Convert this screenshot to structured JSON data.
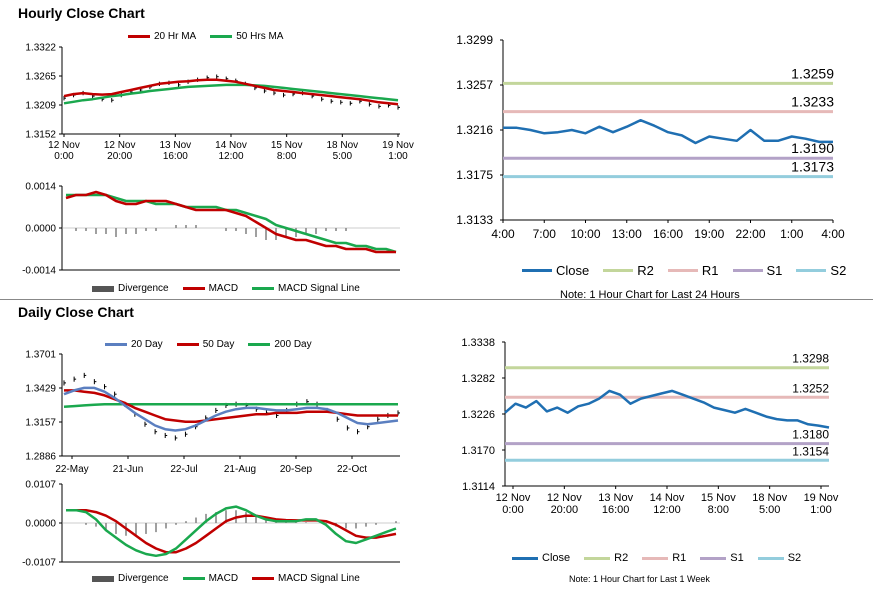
{
  "sections": {
    "hourly_title": "Hourly Close Chart",
    "daily_title": "Daily Close Chart"
  },
  "colors": {
    "close": "#1f6fb2",
    "ma_short": "#c00000",
    "ma_long": "#1aa84e",
    "ma_200": "#1aa84e",
    "ma_20day": "#5b7fc0",
    "r2": "#c3d69b",
    "r1": "#e6b9b8",
    "s1": "#b3a2c7",
    "s2": "#93cddd",
    "divergence": "#808080",
    "bar": "#000000"
  },
  "chart_data": [
    {
      "id": "hourly_price",
      "type": "line",
      "title": "",
      "legend": [
        "20 Hr MA",
        "50 Hrs MA"
      ],
      "y_ticks": [
        "1.3322",
        "1.3265",
        "1.3209",
        "1.3152"
      ],
      "ylim": [
        1.3152,
        1.3322
      ],
      "x_ticks": [
        [
          "12 Nov",
          "0:00"
        ],
        [
          "12 Nov",
          "20:00"
        ],
        [
          "13 Nov",
          "16:00"
        ],
        [
          "14 Nov",
          "12:00"
        ],
        [
          "15 Nov",
          "8:00"
        ],
        [
          "18 Nov",
          "5:00"
        ],
        [
          "19 Nov",
          "1:00"
        ]
      ],
      "series": [
        {
          "name": "Price",
          "style": "hlc_bars",
          "values": [
            1.3222,
            1.3228,
            1.3232,
            1.3226,
            1.322,
            1.3218,
            1.3228,
            1.3234,
            1.3238,
            1.3244,
            1.325,
            1.3252,
            1.3248,
            1.3254,
            1.3258,
            1.3262,
            1.3264,
            1.326,
            1.3256,
            1.325,
            1.3242,
            1.3236,
            1.3232,
            1.3228,
            1.323,
            1.3232,
            1.3226,
            1.322,
            1.3216,
            1.3214,
            1.3212,
            1.3216,
            1.321,
            1.3206,
            1.3208,
            1.3204
          ]
        },
        {
          "name": "20 Hr MA",
          "values": [
            1.3226,
            1.323,
            1.3232,
            1.323,
            1.3229,
            1.323,
            1.3234,
            1.3238,
            1.3242,
            1.3246,
            1.325,
            1.3252,
            1.3254,
            1.3255,
            1.3257,
            1.3258,
            1.3258,
            1.3256,
            1.3254,
            1.325,
            1.3246,
            1.3242,
            1.3238,
            1.3236,
            1.3234,
            1.3232,
            1.323,
            1.3228,
            1.3226,
            1.3224,
            1.3222,
            1.322,
            1.3217,
            1.3214,
            1.3212,
            1.321
          ]
        },
        {
          "name": "50 Hrs MA",
          "values": [
            1.3212,
            1.3215,
            1.3218,
            1.322,
            1.3223,
            1.3226,
            1.3228,
            1.3231,
            1.3233,
            1.3236,
            1.3238,
            1.324,
            1.3242,
            1.3244,
            1.3245,
            1.3246,
            1.3247,
            1.3248,
            1.3248,
            1.3248,
            1.3247,
            1.3246,
            1.3244,
            1.3242,
            1.324,
            1.3238,
            1.3236,
            1.3234,
            1.3232,
            1.323,
            1.3228,
            1.3226,
            1.3224,
            1.3222,
            1.322,
            1.3218
          ]
        }
      ]
    },
    {
      "id": "hourly_macd",
      "type": "line",
      "legend": [
        "Divergence",
        "MACD",
        "MACD Signal Line"
      ],
      "y_ticks": [
        "0.0014",
        "0.0000",
        "-0.0014"
      ],
      "ylim": [
        -0.0014,
        0.0014
      ],
      "series": [
        {
          "name": "Divergence",
          "style": "bars",
          "values": [
            0.0,
            -0.0001,
            -0.0001,
            -0.0002,
            -0.0002,
            -0.0003,
            -0.0002,
            -0.0002,
            -0.0001,
            -0.0001,
            0.0,
            0.0001,
            0.0001,
            0.0001,
            0.0,
            0.0,
            -0.0001,
            -0.0001,
            -0.0002,
            -0.0003,
            -0.0004,
            -0.0004,
            -0.0003,
            -0.0003,
            -0.0002,
            -0.0002,
            -0.0001,
            -0.0001,
            -0.0001,
            0.0,
            0.0,
            0.0,
            0.0,
            0.0
          ]
        },
        {
          "name": "MACD",
          "values": [
            0.001,
            0.0011,
            0.0011,
            0.0012,
            0.0011,
            0.0009,
            0.0008,
            0.0008,
            0.0009,
            0.0009,
            0.0009,
            0.0008,
            0.0007,
            0.0006,
            0.0006,
            0.0006,
            0.0006,
            0.0005,
            0.0004,
            0.0002,
            0.0,
            -0.0002,
            -0.0003,
            -0.0004,
            -0.0004,
            -0.0005,
            -0.0006,
            -0.0006,
            -0.0007,
            -0.0007,
            -0.0007,
            -0.0008,
            -0.0008,
            -0.0008
          ]
        },
        {
          "name": "MACD Signal Line",
          "values": [
            0.0011,
            0.0011,
            0.0011,
            0.0011,
            0.0011,
            0.001,
            0.0009,
            0.0009,
            0.0009,
            0.0008,
            0.0008,
            0.0008,
            0.0007,
            0.0007,
            0.0007,
            0.0007,
            0.0006,
            0.0006,
            0.0005,
            0.0004,
            0.0003,
            0.0001,
            0.0,
            -0.0001,
            -0.0002,
            -0.0003,
            -0.0004,
            -0.0005,
            -0.0005,
            -0.0006,
            -0.0006,
            -0.0007,
            -0.0007,
            -0.0008
          ]
        }
      ]
    },
    {
      "id": "hourly_levels",
      "type": "line",
      "legend": [
        "Close",
        "R2",
        "R1",
        "S1",
        "S2"
      ],
      "note": "Note: 1 Hour Chart for Last 24 Hours",
      "y_ticks": [
        "1.3299",
        "1.3257",
        "1.3216",
        "1.3175",
        "1.3133"
      ],
      "ylim": [
        1.3133,
        1.3299
      ],
      "x_ticks": [
        "4:00",
        "7:00",
        "10:00",
        "13:00",
        "16:00",
        "19:00",
        "22:00",
        "1:00",
        "4:00"
      ],
      "levels": [
        {
          "name": "R2",
          "value": 1.3259,
          "label": "1.3259"
        },
        {
          "name": "R1",
          "value": 1.3233,
          "label": "1.3233"
        },
        {
          "name": "S1",
          "value": 1.319,
          "label": "1.3190"
        },
        {
          "name": "S2",
          "value": 1.3173,
          "label": "1.3173"
        }
      ],
      "series": [
        {
          "name": "Close",
          "values": [
            1.3218,
            1.3218,
            1.3216,
            1.3213,
            1.3214,
            1.3216,
            1.3213,
            1.3219,
            1.3214,
            1.3219,
            1.3225,
            1.322,
            1.3214,
            1.3211,
            1.3204,
            1.321,
            1.3208,
            1.3206,
            1.3216,
            1.3206,
            1.3206,
            1.321,
            1.3208,
            1.3205,
            1.3205
          ]
        }
      ]
    },
    {
      "id": "daily_price",
      "type": "line",
      "legend": [
        "20 Day",
        "50 Day",
        "200 Day"
      ],
      "y_ticks": [
        "1.3701",
        "1.3429",
        "1.3157",
        "1.2886"
      ],
      "ylim": [
        1.2886,
        1.3701
      ],
      "x_ticks": [
        "22-May",
        "21-Jun",
        "22-Jul",
        "21-Aug",
        "20-Sep",
        "22-Oct"
      ],
      "series": [
        {
          "name": "Price",
          "style": "hlc_bars",
          "values": [
            1.347,
            1.35,
            1.353,
            1.348,
            1.344,
            1.338,
            1.33,
            1.322,
            1.314,
            1.308,
            1.305,
            1.303,
            1.306,
            1.312,
            1.319,
            1.325,
            1.329,
            1.33,
            1.329,
            1.326,
            1.323,
            1.321,
            1.325,
            1.33,
            1.332,
            1.33,
            1.325,
            1.318,
            1.311,
            1.308,
            1.312,
            1.318,
            1.321,
            1.323
          ]
        },
        {
          "name": "20 Day",
          "values": [
            1.338,
            1.341,
            1.343,
            1.343,
            1.34,
            1.335,
            1.329,
            1.323,
            1.318,
            1.313,
            1.31,
            1.309,
            1.31,
            1.313,
            1.317,
            1.321,
            1.324,
            1.326,
            1.327,
            1.327,
            1.326,
            1.325,
            1.325,
            1.326,
            1.327,
            1.327,
            1.326,
            1.323,
            1.319,
            1.315,
            1.314,
            1.315,
            1.316,
            1.317
          ]
        },
        {
          "name": "50 Day",
          "values": [
            1.341,
            1.341,
            1.34,
            1.339,
            1.337,
            1.334,
            1.331,
            1.327,
            1.324,
            1.321,
            1.318,
            1.317,
            1.316,
            1.316,
            1.317,
            1.318,
            1.319,
            1.32,
            1.321,
            1.322,
            1.322,
            1.323,
            1.323,
            1.323,
            1.324,
            1.324,
            1.324,
            1.323,
            1.322,
            1.321,
            1.321,
            1.321,
            1.321,
            1.321
          ]
        },
        {
          "name": "200 Day",
          "values": [
            1.328,
            1.3285,
            1.329,
            1.3295,
            1.33,
            1.33,
            1.33,
            1.33,
            1.33,
            1.33,
            1.33,
            1.33,
            1.33,
            1.33,
            1.33,
            1.33,
            1.33,
            1.33,
            1.33,
            1.33,
            1.33,
            1.33,
            1.33,
            1.33,
            1.33,
            1.33,
            1.33,
            1.33,
            1.33,
            1.33,
            1.33,
            1.33,
            1.33,
            1.33
          ]
        }
      ]
    },
    {
      "id": "daily_macd",
      "type": "line",
      "legend": [
        "Divergence",
        "MACD",
        "MACD Signal Line"
      ],
      "y_ticks": [
        "0.0107",
        "0.0000",
        "-0.0107"
      ],
      "ylim": [
        -0.0107,
        0.0107
      ],
      "series": [
        {
          "name": "Divergence",
          "style": "bars",
          "values": [
            0.0,
            0.0,
            -0.0005,
            -0.001,
            -0.002,
            -0.003,
            -0.0035,
            -0.0035,
            -0.003,
            -0.0025,
            -0.0015,
            -0.0005,
            0.0005,
            0.0015,
            0.0025,
            0.003,
            0.0035,
            0.0035,
            0.003,
            0.002,
            0.001,
            0.0005,
            0.0003,
            0.0003,
            0.0002,
            0.0,
            -0.0005,
            -0.001,
            -0.0015,
            -0.0015,
            -0.001,
            -0.0005,
            0.0,
            0.0005
          ]
        },
        {
          "name": "MACD",
          "values": [
            0.0035,
            0.0035,
            0.003,
            0.001,
            -0.002,
            -0.004,
            -0.006,
            -0.0075,
            -0.0085,
            -0.009,
            -0.0085,
            -0.007,
            -0.0045,
            -0.002,
            0.0005,
            0.0025,
            0.004,
            0.0045,
            0.0035,
            0.002,
            0.001,
            0.0005,
            0.0005,
            0.0005,
            0.001,
            0.001,
            -0.0005,
            -0.003,
            -0.005,
            -0.0055,
            -0.0045,
            -0.0035,
            -0.0025,
            -0.0015
          ]
        },
        {
          "name": "MACD Signal Line",
          "values": [
            0.0035,
            0.0035,
            0.0035,
            0.003,
            0.002,
            0.0005,
            -0.0015,
            -0.0035,
            -0.0055,
            -0.007,
            -0.008,
            -0.008,
            -0.007,
            -0.0055,
            -0.0035,
            -0.0015,
            0.0005,
            0.0015,
            0.002,
            0.002,
            0.0015,
            0.001,
            0.0008,
            0.0007,
            0.0007,
            0.0007,
            0.0005,
            -0.0005,
            -0.002,
            -0.0035,
            -0.004,
            -0.004,
            -0.0035,
            -0.003
          ]
        }
      ]
    },
    {
      "id": "daily_levels",
      "type": "line",
      "legend": [
        "Close",
        "R2",
        "R1",
        "S1",
        "S2"
      ],
      "note": "Note: 1 Hour Chart for Last 1 Week",
      "y_ticks": [
        "1.3338",
        "1.3282",
        "1.3226",
        "1.3170",
        "1.3114"
      ],
      "ylim": [
        1.3114,
        1.3338
      ],
      "x_ticks": [
        [
          "12 Nov",
          "0:00"
        ],
        [
          "12 Nov",
          "20:00"
        ],
        [
          "13 Nov",
          "16:00"
        ],
        [
          "14 Nov",
          "12:00"
        ],
        [
          "15 Nov",
          "8:00"
        ],
        [
          "18 Nov",
          "5:00"
        ],
        [
          "19 Nov",
          "1:00"
        ]
      ],
      "levels": [
        {
          "name": "R2",
          "value": 1.3298,
          "label": "1.3298"
        },
        {
          "name": "R1",
          "value": 1.3252,
          "label": "1.3252"
        },
        {
          "name": "S1",
          "value": 1.318,
          "label": "1.3180"
        },
        {
          "name": "S2",
          "value": 1.3154,
          "label": "1.3154"
        }
      ],
      "series": [
        {
          "name": "Close",
          "values": [
            1.3228,
            1.3242,
            1.3236,
            1.3246,
            1.323,
            1.3236,
            1.3228,
            1.3238,
            1.3242,
            1.325,
            1.3262,
            1.3256,
            1.3242,
            1.325,
            1.3254,
            1.3258,
            1.3262,
            1.3256,
            1.325,
            1.3244,
            1.3236,
            1.3232,
            1.3228,
            1.3234,
            1.3228,
            1.3222,
            1.3218,
            1.3216,
            1.3216,
            1.321,
            1.3208,
            1.3205
          ]
        }
      ]
    }
  ]
}
